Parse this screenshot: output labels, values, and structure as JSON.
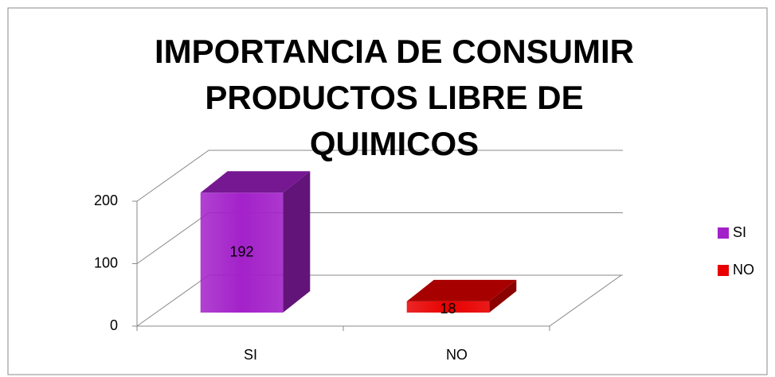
{
  "chart_data": {
    "type": "bar3d",
    "title": "IMPORTANCIA DE CONSUMIR PRODUCTOS LIBRE DE QUIMICOS",
    "categories": [
      "SI",
      "NO"
    ],
    "values": [
      192,
      18
    ],
    "colors": [
      "#a321c9",
      "#e80000"
    ],
    "ylim": [
      0,
      200
    ],
    "yticks": [
      0,
      100,
      200
    ],
    "grid": true,
    "legend": "right"
  }
}
